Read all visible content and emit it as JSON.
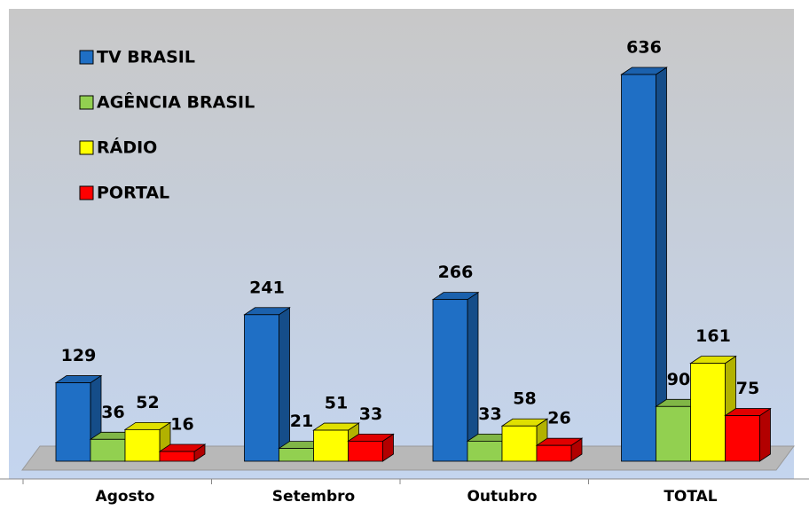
{
  "chart_data": {
    "type": "bar3d",
    "categories": [
      "Agosto",
      "Setembro",
      "Outubro",
      "TOTAL"
    ],
    "series": [
      {
        "name": "TV BRASIL",
        "color": "#1f6fc5",
        "values": [
          129,
          241,
          266,
          636
        ]
      },
      {
        "name": "AGÊNCIA BRASIL",
        "color": "#92d050",
        "values": [
          36,
          21,
          33,
          90
        ]
      },
      {
        "name": "RÁDIO",
        "color": "#ffff00",
        "values": [
          52,
          51,
          58,
          161
        ]
      },
      {
        "name": "PORTAL",
        "color": "#ff0000",
        "values": [
          16,
          33,
          26,
          75
        ]
      }
    ],
    "legend": "upper left"
  }
}
